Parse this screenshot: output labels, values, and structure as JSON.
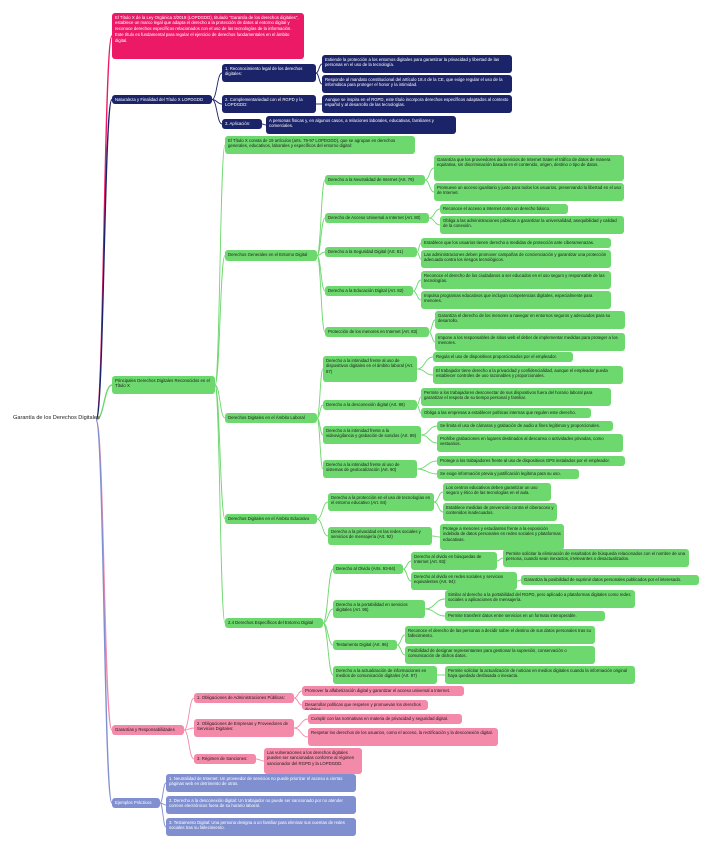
{
  "root": "Garantía de los Derechos Digitales",
  "colors": {
    "pink": "#ec1a66",
    "navy": "#1b2369",
    "green": "#6dd86d",
    "rose": "#f48aaa",
    "slate": "#7f8fcf"
  },
  "nodes": [
    {
      "id": "intro",
      "text": "El Título X de la Ley Orgánica 3/2018 (LOPDGDD), titulado \"Garantía de los derechos digitales\", establece un marco legal que adapta el derecho a la protección de datos al entorno digital y reconoce derechos específicos relacionados con el uso de las tecnologías de la información. Este título es fundamental para regular el ejercicio de derechos fundamentales en el ámbito digital."
    },
    {
      "id": "nat",
      "text": "Naturaleza y Finalidad del Título X LOPDGDD"
    },
    {
      "id": "nat1",
      "text": "1.  Reconocimiento legal de los derechos digitales:"
    },
    {
      "id": "nat1a",
      "text": "Extiende la protección a los entornos digitales para garantizar la privacidad y libertad de las personas en el uso de la tecnología."
    },
    {
      "id": "nat1b",
      "text": "Responde al mandato constitucional del artículo 18.4 de la CE, que exige regular el uso de la informática para proteger el honor y la intimidad."
    },
    {
      "id": "nat2",
      "text": "2.  Complementariedad con el RGPD y la LOPDGDD:"
    },
    {
      "id": "nat2a",
      "text": "Aunque se inspira en el RGPD, este título incorpora derechos específicos adaptados al contexto español y al desarrollo de las tecnologías."
    },
    {
      "id": "nat3",
      "text": "3.  Aplicación:"
    },
    {
      "id": "nat3a",
      "text": "A personas físicas y, en algunos casos, a relaciones laborales, educativas, familiares y comerciales."
    },
    {
      "id": "pri",
      "text": "Principales Derechos Digitales Reconocidos en el Título X"
    },
    {
      "id": "pri0",
      "text": "El Título X consta de 19 artículos (arts. 79-97 LOPDGDD), que se agrupan en derechos generales, educativos, laborales y específicos del entorno digital:"
    },
    {
      "id": "gen",
      "text": "Derechos Generales en el Entorno Digital"
    },
    {
      "id": "neu",
      "text": "Derecho a la Neutralidad de Internet (Art. 79)"
    },
    {
      "id": "neu1",
      "text": "Garantiza que los proveedores de servicios de Internet traten el tráfico de datos de manera equitativa, sin discriminación basada en el contenido, origen, destino o tipo de datos."
    },
    {
      "id": "neu2",
      "text": "Promueve un acceso igualitario y justo para todos los usuarios, preservando la libertad en el uso de Internet."
    },
    {
      "id": "acc",
      "text": "Derecho de Acceso Universal a Internet (Art. 80)"
    },
    {
      "id": "acc1",
      "text": "Reconoce el acceso a Internet como un derecho básico."
    },
    {
      "id": "acc2",
      "text": "Obliga a las administraciones públicas a garantizar la universalidad, asequibilidad y calidad de la conexión."
    },
    {
      "id": "seg",
      "text": "Derecho a la Seguridad Digital (Art. 81)"
    },
    {
      "id": "seg1",
      "text": "Establece que los usuarios tienen derecho a medidas de protección ante ciberamenazas."
    },
    {
      "id": "seg2",
      "text": "Las administraciones deben promover campañas de concienciación y garantizar una protección adecuada contra los riesgos tecnológicos."
    },
    {
      "id": "edu",
      "text": "Derecho a la Educación Digital (Art. 82)"
    },
    {
      "id": "edu1",
      "text": "Reconoce el derecho de los ciudadanos a ser educados en el uso seguro y responsable de las tecnologías."
    },
    {
      "id": "edu2",
      "text": "Impulsa programas educativos que incluyan competencias digitales, especialmente para menores."
    },
    {
      "id": "men",
      "text": "Protección de los menores en Internet (Art. 83)"
    },
    {
      "id": "men1",
      "text": "Garantiza el derecho de los menores a navegar en entornos seguros y adecuados para su desarrollo."
    },
    {
      "id": "men2",
      "text": "Impone a los responsables de sitios web el deber de implementar medidas para proteger a los menores."
    },
    {
      "id": "lab",
      "text": "Derechos Digitales en el Ámbito Laboral"
    },
    {
      "id": "int",
      "text": "Derecho a la intimidad frente al uso de dispositivos digitales en el ámbito laboral (Art. 87)"
    },
    {
      "id": "int1",
      "text": "Regula el uso de dispositivos proporcionados por el empleador."
    },
    {
      "id": "int2",
      "text": "El trabajador tiene derecho a la privacidad y confidencialidad, aunque el empleador pueda establecer controles de uso razonables y proporcionales."
    },
    {
      "id": "des",
      "text": "Derecho a la desconexión digital (Art. 88)"
    },
    {
      "id": "des1",
      "text": "Permite a los trabajadores desconectar de sus dispositivos fuera del horario laboral para garantizar el respeto de su tiempo personal y familiar."
    },
    {
      "id": "des2",
      "text": "Obliga a las empresas a establecer políticas internas que regulen este derecho."
    },
    {
      "id": "vid",
      "text": "Derecho a la intimidad frente a la videovigilancia y grabación de sonidos (Art. 89)"
    },
    {
      "id": "vid1",
      "text": "Se limita el uso de cámaras y grabación de audio a fines legítimos y proporcionales."
    },
    {
      "id": "vid2",
      "text": "Prohíbe grabaciones en lugares destinados al descanso o actividades privadas, como vestuarios."
    },
    {
      "id": "geo",
      "text": "Derecho a la intimidad frente al uso de sistemas de geolocalización (Art. 90)"
    },
    {
      "id": "geo1",
      "text": "Protege a los trabajadores frente al uso de dispositivos GPS instalados por el empleador."
    },
    {
      "id": "geo2",
      "text": "Se exige información previa y justificación legítima para su uso."
    },
    {
      "id": "dedu",
      "text": "Derechos Digitales en el Ámbito Educativo"
    },
    {
      "id": "pdat",
      "text": "Derecho a la protección en el uso de tecnologías en el entorno educativo (Art. 84)"
    },
    {
      "id": "pdat1",
      "text": "Los centros educativos deben garantizar un uso seguro y ético de las tecnologías en el aula."
    },
    {
      "id": "pdat2",
      "text": "Establece medidas de prevención contra el ciberacoso y contenidos inadecuados."
    },
    {
      "id": "red",
      "text": "Derecho a la privacidad en las redes sociales y servicios de mensajería (Art. 92)"
    },
    {
      "id": "red1",
      "text": "Protege a menores y estudiantes frente a la exposición indebida de datos personales en redes sociales y plataformas educativas."
    },
    {
      "id": "esp",
      "text": "2.4 Derechos Específicos del Entorno Digital"
    },
    {
      "id": "olv",
      "text": "Derecho al Olvido (Arts. 93-94)"
    },
    {
      "id": "olv1",
      "text": "Derecho al olvido en búsquedas de Internet (Art. 93):"
    },
    {
      "id": "olv1a",
      "text": "Permite solicitar la eliminación de resultados de búsqueda relacionados con el nombre de una persona, cuando sean inexactos, irrelevantes o desactualizados."
    },
    {
      "id": "olv2",
      "text": "Derecho al olvido en redes sociales y servicios equivalentes (Art. 94):"
    },
    {
      "id": "olv2a",
      "text": "Garantiza la posibilidad de suprimir datos personales publicados por el interesado."
    },
    {
      "id": "por",
      "text": "Derecho a la portabilidad en servicios digitales (Art. 95)"
    },
    {
      "id": "por1",
      "text": "Similar al derecho a la portabilidad del RGPD, pero aplicado a plataformas digitales como redes sociales o aplicaciones de mensajería."
    },
    {
      "id": "por2",
      "text": "Permite transferir datos entre servicios en un formato interoperable."
    },
    {
      "id": "tes",
      "text": "Testamento Digital (Art. 96)"
    },
    {
      "id": "tes1",
      "text": "Reconoce el derecho de las personas a decidir sobre el destino de sus datos personales tras su fallecimiento."
    },
    {
      "id": "tes2",
      "text": "Posibilidad de designar representantes para gestionar la supresión, conservación o comunicación de dichos datos."
    },
    {
      "id": "act",
      "text": "Derecho a la actualización de informaciones en medios de comunicación digitales (Art. 97)"
    },
    {
      "id": "act1",
      "text": "Permite solicitar la actualización de noticias en medios digitales cuando la información original haya quedado desfasada o inexacta."
    },
    {
      "id": "gar",
      "text": "Garantías y Responsabilidades"
    },
    {
      "id": "gar1",
      "text": "1.  Obligaciones de Administraciones Públicas:"
    },
    {
      "id": "gar1a",
      "text": "Promover la alfabetización digital y garantizar el acceso universal a Internet."
    },
    {
      "id": "gar1b",
      "text": "Desarrollar políticas que respeten y promuevan los derechos digitales."
    },
    {
      "id": "gar2",
      "text": "2.  Obligaciones de Empresas y Proveedores de Servicios Digitales:"
    },
    {
      "id": "gar2a",
      "text": "Cumplir con las normativas en materia de privacidad y seguridad digital."
    },
    {
      "id": "gar2b",
      "text": "Respetar los derechos de los usuarios, como el acceso, la rectificación y la desconexión digital."
    },
    {
      "id": "gar3",
      "text": "3.  Régimen de Sanciones:"
    },
    {
      "id": "gar3a",
      "text": "Las vulneraciones a los derechos digitales pueden ser sancionadas conforme al régimen sancionador del RGPD y la LOPDGDD."
    },
    {
      "id": "eje",
      "text": "Ejemplos Prácticos"
    },
    {
      "id": "eje1",
      "text": "1.  Neutralidad de Internet: Un proveedor de servicios no puede priorizar el acceso a ciertas páginas web en detrimento de otras."
    },
    {
      "id": "eje2",
      "text": "2.  Derecho a la desconexión digital: Un trabajador no puede ser sancionado por no atender correos electrónicos fuera de su horario laboral."
    },
    {
      "id": "eje3",
      "text": "3.  Testamento Digital: Una persona designa a un familiar para eliminar sus cuentas de redes sociales tras su fallecimiento."
    }
  ]
}
